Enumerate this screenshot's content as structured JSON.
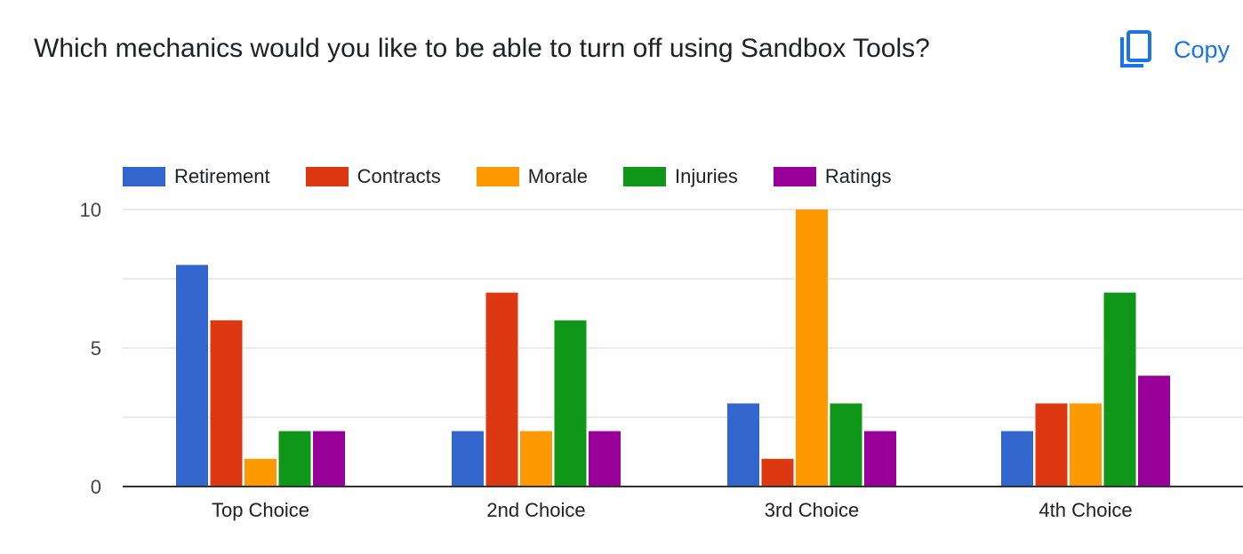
{
  "question": {
    "title": "Which mechanics would you like to be able to turn off using Sandbox Tools?"
  },
  "toolbar": {
    "copy_label": "Copy",
    "copy_icon": "copy-icon",
    "accent_color": "#1a73e8"
  },
  "chart_data": {
    "type": "bar",
    "title": "",
    "xlabel": "",
    "ylabel": "",
    "categories": [
      "Top Choice",
      "2nd Choice",
      "3rd Choice",
      "4th Choice"
    ],
    "ylim": [
      0,
      10
    ],
    "yticks": [
      0,
      5,
      10
    ],
    "grid": true,
    "legend_position": "top-left",
    "series": [
      {
        "name": "Retirement",
        "color": "#3366cc",
        "values": [
          8,
          2,
          3,
          2
        ]
      },
      {
        "name": "Contracts",
        "color": "#dc3912",
        "values": [
          6,
          7,
          1,
          3
        ]
      },
      {
        "name": "Morale",
        "color": "#ff9900",
        "values": [
          1,
          2,
          10,
          3
        ]
      },
      {
        "name": "Injuries",
        "color": "#109618",
        "values": [
          2,
          6,
          3,
          7
        ]
      },
      {
        "name": "Ratings",
        "color": "#990099",
        "values": [
          2,
          2,
          2,
          4
        ]
      }
    ]
  }
}
